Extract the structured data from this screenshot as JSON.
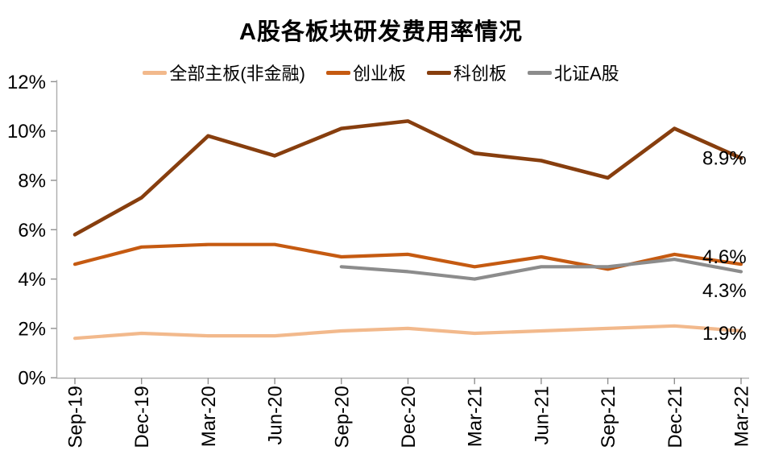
{
  "title": "A股各板块研发费用率情况",
  "chart_data": {
    "type": "line",
    "title": "A股各板块研发费用率情况",
    "categories": [
      "Sep-19",
      "Dec-19",
      "Mar-20",
      "Jun-20",
      "Sep-20",
      "Dec-20",
      "Mar-21",
      "Jun-21",
      "Sep-21",
      "Dec-21",
      "Mar-22"
    ],
    "series": [
      {
        "name": "全部主板(非金融)",
        "color": "#F2B98C",
        "end_label": "1.9%",
        "values": [
          1.6,
          1.8,
          1.7,
          1.7,
          1.9,
          2.0,
          1.8,
          1.9,
          2.0,
          2.1,
          1.9
        ]
      },
      {
        "name": "创业板",
        "color": "#C55A11",
        "end_label": "4.6%",
        "values": [
          4.6,
          5.3,
          5.4,
          5.4,
          4.9,
          5.0,
          4.5,
          4.9,
          4.4,
          5.0,
          4.6
        ]
      },
      {
        "name": "科创板",
        "color": "#873E0E",
        "end_label": "8.9%",
        "values": [
          5.8,
          7.3,
          9.8,
          9.0,
          10.1,
          10.4,
          9.1,
          8.8,
          8.1,
          10.1,
          8.9
        ]
      },
      {
        "name": "北证A股",
        "color": "#8C8C8C",
        "end_label": "4.3%",
        "values": [
          null,
          null,
          null,
          null,
          4.5,
          4.3,
          4.0,
          4.5,
          4.5,
          4.8,
          4.3
        ]
      }
    ],
    "y_tick_labels": [
      "0%",
      "2%",
      "4%",
      "6%",
      "8%",
      "10%",
      "12%"
    ],
    "ylim": [
      0,
      12
    ],
    "y_tick_step": 2,
    "xlabel": "",
    "ylabel": "",
    "grid": false,
    "legend_position": "top",
    "x_tick_label_rotation": -90,
    "end_labels_visible": true
  }
}
